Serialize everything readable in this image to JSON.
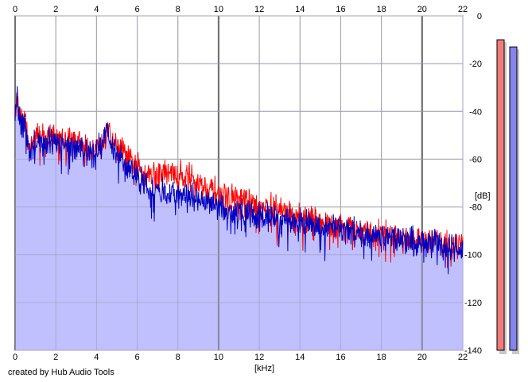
{
  "chart_data": {
    "type": "area",
    "title": "",
    "xlabel": "[kHz]",
    "ylabel": "[dB]",
    "xlim": [
      0,
      22
    ],
    "ylim": [
      -140,
      0
    ],
    "x_ticks": [
      "0",
      "2",
      "4",
      "6",
      "8",
      "10",
      "12",
      "14",
      "16",
      "18",
      "20",
      "22"
    ],
    "y_ticks": [
      "0",
      "-20",
      "-40",
      "-60",
      "-80",
      "-100",
      "-120",
      "-140"
    ],
    "grid": true,
    "fill_color": "#c0c0ff",
    "series": [
      {
        "color": "#ff0000",
        "x": [
          0,
          0.1,
          0.2,
          0.35,
          0.5,
          0.6,
          0.8,
          1.0,
          1.2,
          1.5,
          1.8,
          2.0,
          2.3,
          2.6,
          3.0,
          3.3,
          3.6,
          4.0,
          4.3,
          4.5,
          4.7,
          5.0,
          5.3,
          5.6,
          6.0,
          6.3,
          6.6,
          7.0,
          7.5,
          8.0,
          8.5,
          9.0,
          9.5,
          10.0,
          10.5,
          11.0,
          11.5,
          12.0,
          12.5,
          13.0,
          13.5,
          14.0,
          14.5,
          15.0,
          15.5,
          16.0,
          16.5,
          17.0,
          17.5,
          18.0,
          18.5,
          19.0,
          19.5,
          20.0,
          20.5,
          21.0,
          21.5,
          22.0
        ],
        "values": [
          -38,
          -34,
          -40,
          -44,
          -42,
          -52,
          -55,
          -49,
          -50,
          -51,
          -50,
          -51,
          -52,
          -51,
          -52,
          -54,
          -56,
          -55,
          -52,
          -45,
          -51,
          -54,
          -57,
          -61,
          -63,
          -65,
          -66,
          -66,
          -66,
          -66,
          -67,
          -70,
          -72,
          -74,
          -76,
          -77,
          -78,
          -80,
          -80,
          -81,
          -83,
          -84,
          -85,
          -86,
          -87,
          -88,
          -89,
          -90,
          -91,
          -91,
          -92,
          -93,
          -93,
          -94,
          -94,
          -95,
          -96,
          -97
        ]
      },
      {
        "color": "#0000c0",
        "x": [
          0,
          0.1,
          0.2,
          0.35,
          0.5,
          0.6,
          0.8,
          1.0,
          1.2,
          1.5,
          1.8,
          2.0,
          2.3,
          2.6,
          3.0,
          3.3,
          3.6,
          4.0,
          4.3,
          4.5,
          4.7,
          5.0,
          5.3,
          5.6,
          6.0,
          6.3,
          6.6,
          7.0,
          7.5,
          8.0,
          8.5,
          9.0,
          9.5,
          10.0,
          10.5,
          11.0,
          11.5,
          12.0,
          12.5,
          13.0,
          13.5,
          14.0,
          14.5,
          15.0,
          15.5,
          16.0,
          16.5,
          17.0,
          17.5,
          18.0,
          18.5,
          19.0,
          19.5,
          20.0,
          20.5,
          21.0,
          21.5,
          22.0
        ],
        "values": [
          -37,
          -33,
          -41,
          -46,
          -43,
          -54,
          -58,
          -52,
          -52,
          -53,
          -52,
          -53,
          -54,
          -52,
          -54,
          -55,
          -57,
          -56,
          -53,
          -48,
          -54,
          -57,
          -60,
          -64,
          -67,
          -70,
          -73,
          -74,
          -74,
          -74,
          -75,
          -76,
          -78,
          -80,
          -82,
          -82,
          -83,
          -84,
          -84,
          -85,
          -86,
          -86,
          -87,
          -88,
          -89,
          -89,
          -90,
          -91,
          -92,
          -92,
          -93,
          -94,
          -94,
          -95,
          -95,
          -96,
          -97,
          -98
        ]
      }
    ],
    "level_meters": [
      {
        "color": "#ef7b7b",
        "level_db": -10
      },
      {
        "color": "#8585ee",
        "level_db": -13
      }
    ]
  },
  "footer": {
    "credit": "created by Hub Audio Tools"
  }
}
